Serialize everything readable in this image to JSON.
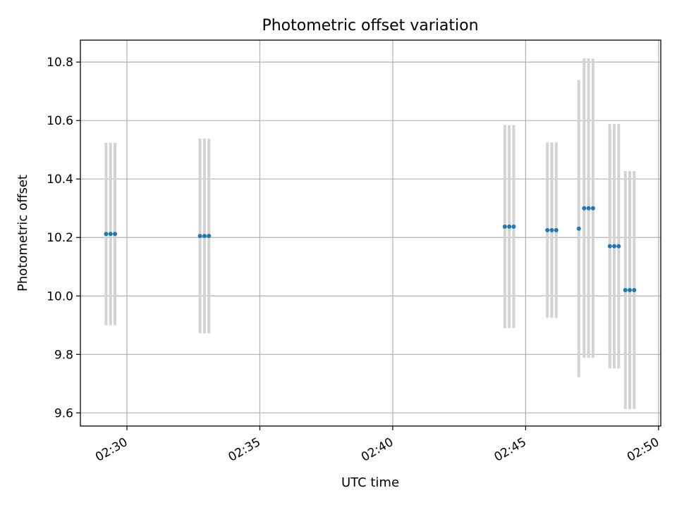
{
  "chart_data": {
    "type": "scatter",
    "title": "Photometric offset variation",
    "xlabel": "UTC time",
    "ylabel": "Photometric offset",
    "x_ticks": [
      "02:30",
      "02:35",
      "02:40",
      "02:45",
      "02:50"
    ],
    "y_ticks": [
      "9.6",
      "9.8",
      "10.0",
      "10.2",
      "10.4",
      "10.6",
      "10.8"
    ],
    "xlim": [
      "02:28:15",
      "02:50:05"
    ],
    "ylim": [
      9.555,
      10.875
    ],
    "grid": true,
    "errorbars": true,
    "colors": {
      "point": "#1f77b4",
      "errorbar": "#d3d3d3",
      "grid": "#b0b0b0",
      "axes": "#000000"
    },
    "points": [
      {
        "x": "02:29:13",
        "y": 10.212,
        "err": 0.312
      },
      {
        "x": "02:29:23",
        "y": 10.212,
        "err": 0.312
      },
      {
        "x": "02:29:33",
        "y": 10.212,
        "err": 0.312
      },
      {
        "x": "02:32:45",
        "y": 10.205,
        "err": 0.333
      },
      {
        "x": "02:32:55",
        "y": 10.205,
        "err": 0.333
      },
      {
        "x": "02:33:05",
        "y": 10.205,
        "err": 0.333
      },
      {
        "x": "02:44:13",
        "y": 10.237,
        "err": 0.347
      },
      {
        "x": "02:44:23",
        "y": 10.237,
        "err": 0.347
      },
      {
        "x": "02:44:33",
        "y": 10.237,
        "err": 0.347
      },
      {
        "x": "02:45:49",
        "y": 10.225,
        "err": 0.3
      },
      {
        "x": "02:45:59",
        "y": 10.225,
        "err": 0.3
      },
      {
        "x": "02:46:09",
        "y": 10.225,
        "err": 0.3
      },
      {
        "x": "02:47:00",
        "y": 10.23,
        "err": 0.508
      },
      {
        "x": "02:47:12",
        "y": 10.3,
        "err": 0.512
      },
      {
        "x": "02:47:22",
        "y": 10.3,
        "err": 0.512
      },
      {
        "x": "02:47:32",
        "y": 10.3,
        "err": 0.512
      },
      {
        "x": "02:48:10",
        "y": 10.17,
        "err": 0.418
      },
      {
        "x": "02:48:20",
        "y": 10.17,
        "err": 0.418
      },
      {
        "x": "02:48:30",
        "y": 10.17,
        "err": 0.418
      },
      {
        "x": "02:48:45",
        "y": 10.02,
        "err": 0.407
      },
      {
        "x": "02:48:55",
        "y": 10.02,
        "err": 0.407
      },
      {
        "x": "02:49:05",
        "y": 10.02,
        "err": 0.407
      }
    ]
  }
}
